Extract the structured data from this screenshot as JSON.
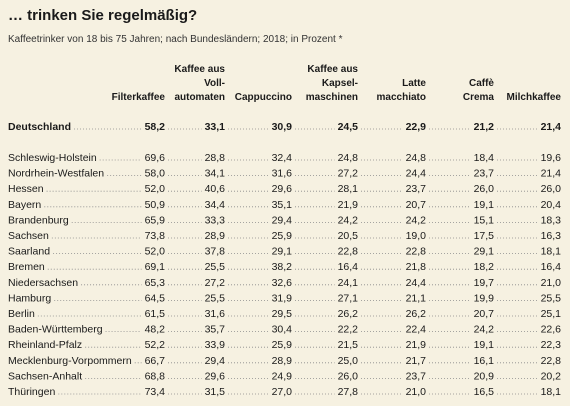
{
  "header": {
    "title": "… trinken Sie regelmäßig?",
    "subtitle": "Kaffeetrinker von 18 bis 75 Jahren; nach Bundesländern; 2018; in Prozent *"
  },
  "table": {
    "columns": [
      {
        "lines": [
          "Filterkaffee"
        ]
      },
      {
        "lines": [
          "Kaffee aus",
          "Voll-",
          "automaten"
        ]
      },
      {
        "lines": [
          "Cappuccino"
        ]
      },
      {
        "lines": [
          "Kaffee aus",
          "Kapsel-",
          "maschinen"
        ]
      },
      {
        "lines": [
          "Latte",
          "macchiato"
        ]
      },
      {
        "lines": [
          "Caffè",
          "Crema"
        ]
      },
      {
        "lines": [
          "Milchkaffee"
        ]
      }
    ],
    "total": {
      "label": "Deutschland",
      "values": [
        "58,2",
        "33,1",
        "30,9",
        "24,5",
        "22,9",
        "21,2",
        "21,4"
      ]
    },
    "rows": [
      {
        "label": "Schleswig-Holstein",
        "values": [
          "69,6",
          "28,8",
          "32,4",
          "24,8",
          "24,8",
          "18,4",
          "19,6"
        ]
      },
      {
        "label": "Nordrhein-Westfalen",
        "values": [
          "58,0",
          "34,1",
          "31,6",
          "27,2",
          "24,4",
          "23,7",
          "21,4"
        ]
      },
      {
        "label": "Hessen",
        "values": [
          "52,0",
          "40,6",
          "29,6",
          "28,1",
          "23,7",
          "26,0",
          "26,0"
        ]
      },
      {
        "label": "Bayern",
        "values": [
          "50,9",
          "34,4",
          "35,1",
          "21,9",
          "20,7",
          "19,1",
          "20,4"
        ]
      },
      {
        "label": "Brandenburg",
        "values": [
          "65,9",
          "33,3",
          "29,4",
          "24,2",
          "24,2",
          "15,1",
          "18,3"
        ]
      },
      {
        "label": "Sachsen",
        "values": [
          "73,8",
          "28,9",
          "25,9",
          "20,5",
          "19,0",
          "17,5",
          "16,3"
        ]
      },
      {
        "label": "Saarland",
        "values": [
          "52,0",
          "37,8",
          "29,1",
          "22,8",
          "22,8",
          "29,1",
          "18,1"
        ]
      },
      {
        "label": "Bremen",
        "values": [
          "69,1",
          "25,5",
          "38,2",
          "16,4",
          "21,8",
          "18,2",
          "16,4"
        ]
      },
      {
        "label": "Niedersachsen",
        "values": [
          "65,3",
          "27,2",
          "32,6",
          "24,1",
          "24,4",
          "19,7",
          "21,0"
        ]
      },
      {
        "label": "Hamburg",
        "values": [
          "64,5",
          "25,5",
          "31,9",
          "27,1",
          "21,1",
          "19,9",
          "25,5"
        ]
      },
      {
        "label": "Berlin",
        "values": [
          "61,5",
          "31,6",
          "29,5",
          "26,2",
          "26,2",
          "20,7",
          "25,1"
        ]
      },
      {
        "label": "Baden-Württemberg",
        "values": [
          "48,2",
          "35,7",
          "30,4",
          "22,2",
          "22,4",
          "24,2",
          "22,6"
        ]
      },
      {
        "label": "Rheinland-Pfalz",
        "values": [
          "52,2",
          "33,9",
          "25,9",
          "21,5",
          "21,9",
          "19,1",
          "22,3"
        ]
      },
      {
        "label": "Mecklenburg-Vorpommern",
        "values": [
          "66,7",
          "29,4",
          "28,9",
          "25,0",
          "21,7",
          "16,1",
          "22,8"
        ]
      },
      {
        "label": "Sachsen-Anhalt",
        "values": [
          "68,8",
          "29,6",
          "24,9",
          "26,0",
          "23,7",
          "20,9",
          "20,2"
        ]
      },
      {
        "label": "Thüringen",
        "values": [
          "73,4",
          "31,5",
          "27,0",
          "27,8",
          "21,0",
          "16,5",
          "18,1"
        ]
      }
    ]
  }
}
